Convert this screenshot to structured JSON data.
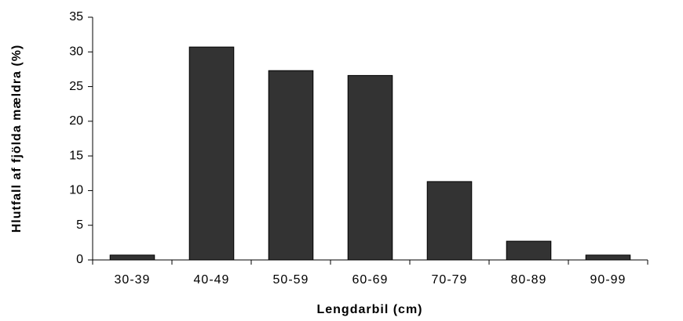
{
  "chart_data": {
    "type": "bar",
    "x_label": "Lengdarbil (cm)",
    "y_label": "Hlutfall af fjölda mældra (%)",
    "categories": [
      "30-39",
      "40-49",
      "50-59",
      "60-69",
      "70-79",
      "80-89",
      "90-99"
    ],
    "values": [
      0.7,
      30.7,
      27.3,
      26.6,
      11.3,
      2.7,
      0.7
    ],
    "color": "#333333",
    "ylim": [
      0,
      35
    ],
    "yticks": [
      0,
      5,
      10,
      15,
      20,
      25,
      30,
      35
    ],
    "grid": false
  }
}
